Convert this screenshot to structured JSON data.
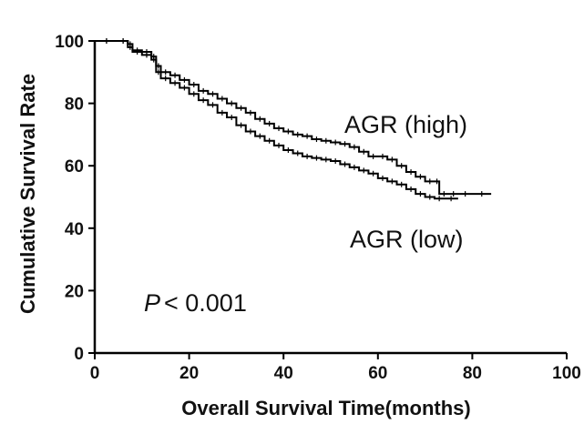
{
  "chart_data": {
    "type": "line",
    "title": "",
    "xlabel": "Overall Survival Time(months)",
    "ylabel": "Cumulative Survival Rate",
    "xlim": [
      0,
      100
    ],
    "ylim": [
      0,
      100
    ],
    "xticks": [
      0,
      20,
      40,
      60,
      80,
      100
    ],
    "yticks": [
      0,
      20,
      40,
      60,
      80,
      100
    ],
    "grid": false,
    "step": true,
    "series": [
      {
        "name": "AGR (high)",
        "x": [
          0,
          5,
          7,
          8,
          10,
          12,
          13,
          14,
          16,
          18,
          20,
          22,
          24,
          26,
          28,
          30,
          32,
          34,
          36,
          38,
          40,
          42,
          44,
          46,
          48,
          50,
          52,
          54,
          56,
          58,
          60,
          62,
          64,
          66,
          68,
          70,
          72,
          73,
          75,
          77,
          80,
          84
        ],
        "y": [
          100,
          100,
          99,
          97,
          96.5,
          95,
          92,
          90,
          89,
          87.5,
          86,
          84,
          83,
          81.5,
          80,
          78.5,
          77,
          75,
          73.5,
          72,
          71,
          70,
          69.5,
          68.5,
          68,
          67.5,
          67,
          66,
          64.5,
          63,
          63,
          62,
          60,
          58,
          56.5,
          55,
          55,
          51,
          51,
          51,
          51,
          51
        ]
      },
      {
        "name": "AGR (low)",
        "x": [
          0,
          5,
          7,
          8,
          10,
          12,
          13,
          14,
          16,
          18,
          20,
          22,
          24,
          26,
          28,
          30,
          32,
          34,
          36,
          38,
          40,
          42,
          44,
          46,
          48,
          50,
          52,
          54,
          56,
          58,
          60,
          62,
          64,
          66,
          68,
          70,
          72,
          74,
          77
        ],
        "y": [
          100,
          100,
          98,
          96.5,
          95.5,
          94,
          90,
          88,
          86.5,
          85,
          83,
          81,
          79.5,
          77,
          75.5,
          73,
          71,
          69.5,
          68,
          66.5,
          65,
          64,
          63,
          62.5,
          62,
          61.5,
          60.5,
          59.5,
          58.5,
          57.5,
          56,
          55,
          54,
          52.5,
          51,
          50,
          49.5,
          49.5,
          49.5
        ]
      }
    ],
    "annotations": {
      "high_label": "AGR (high)",
      "low_label": "AGR (low)",
      "p_symbol": "P",
      "p_text": "< 0.001"
    }
  }
}
